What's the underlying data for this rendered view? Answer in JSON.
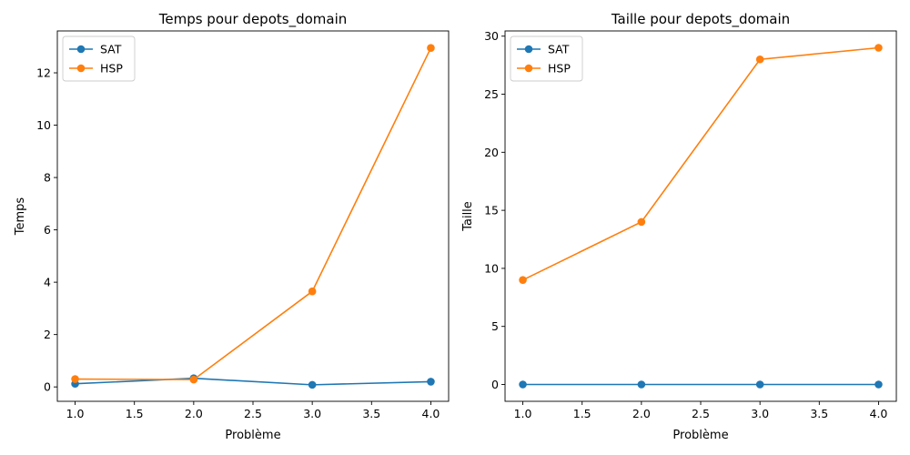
{
  "chart_data": [
    {
      "type": "line",
      "title": "Temps pour depots_domain",
      "xlabel": "Problème",
      "ylabel": "Temps",
      "x": [
        1.0,
        2.0,
        3.0,
        4.0
      ],
      "xlim": [
        0.85,
        4.15
      ],
      "ylim": [
        -0.55,
        13.6
      ],
      "xticks": [
        "1.0",
        "1.5",
        "2.0",
        "2.5",
        "3.0",
        "3.5",
        "4.0"
      ],
      "yticks": [
        "0",
        "2",
        "4",
        "6",
        "8",
        "10",
        "12"
      ],
      "legend_position": "top-left",
      "grid": false,
      "series": [
        {
          "name": "SAT",
          "color": "#1f77b4",
          "values": [
            0.12,
            0.33,
            0.08,
            0.2
          ]
        },
        {
          "name": "HSP",
          "color": "#ff7f0e",
          "values": [
            0.3,
            0.28,
            3.65,
            12.95
          ]
        }
      ]
    },
    {
      "type": "line",
      "title": "Taille pour depots_domain",
      "xlabel": "Problème",
      "ylabel": "Taille",
      "x": [
        1.0,
        2.0,
        3.0,
        4.0
      ],
      "xlim": [
        0.85,
        4.15
      ],
      "ylim": [
        -1.45,
        30.45
      ],
      "xticks": [
        "1.0",
        "1.5",
        "2.0",
        "2.5",
        "3.0",
        "3.5",
        "4.0"
      ],
      "yticks": [
        "0",
        "5",
        "10",
        "15",
        "20",
        "25",
        "30"
      ],
      "legend_position": "top-left",
      "grid": false,
      "series": [
        {
          "name": "SAT",
          "color": "#1f77b4",
          "values": [
            0,
            0,
            0,
            0
          ]
        },
        {
          "name": "HSP",
          "color": "#ff7f0e",
          "values": [
            9,
            14,
            28,
            29
          ]
        }
      ]
    }
  ]
}
